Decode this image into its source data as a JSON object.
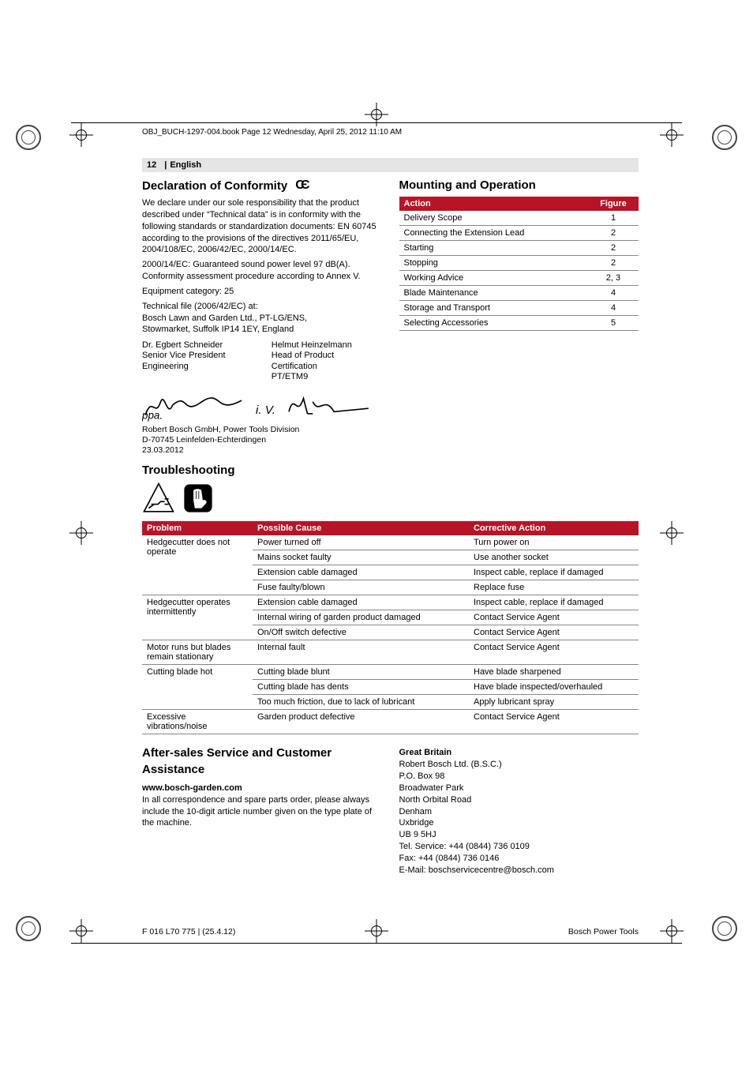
{
  "printer": {
    "header_text": "OBJ_BUCH-1297-004.book  Page 12  Wednesday, April 25, 2012  11:10 AM"
  },
  "page_header": {
    "page_no": "12",
    "lang": "English"
  },
  "conformity": {
    "title": "Declaration of Conformity",
    "body": [
      "We declare under our sole responsibility that the product described under “Technical data” is in conformity with the following standards or standardization documents: EN 60745 according to the provisions of the directives 2011/65/EU, 2004/108/EC, 2006/42/EC, 2000/14/EC.",
      "2000/14/EC: Guaranteed sound power level 97 dB(A). Conformity assessment procedure according to Annex V.",
      "Equipment category: 25",
      "Technical file (2006/42/EC) at:",
      "Bosch Lawn and Garden Ltd., PT-LG/ENS,",
      "Stowmarket, Suffolk IP14 1EY, England"
    ],
    "signers": [
      {
        "name": "Dr. Egbert Schneider",
        "title1": "Senior Vice President",
        "title2": "Engineering"
      },
      {
        "name": "Helmut Heinzelmann",
        "title1": "Head of Product Certification",
        "title2": "PT/ETM9"
      }
    ],
    "address": [
      "Robert Bosch GmbH, Power Tools Division",
      "D-70745 Leinfelden-Echterdingen",
      "23.03.2012"
    ]
  },
  "mounting": {
    "title": "Mounting and Operation",
    "cols": [
      "Action",
      "Figure"
    ],
    "rows": [
      [
        "Delivery Scope",
        "1"
      ],
      [
        "Connecting the Extension Lead",
        "2"
      ],
      [
        "Starting",
        "2"
      ],
      [
        "Stopping",
        "2"
      ],
      [
        "Working Advice",
        "2, 3"
      ],
      [
        "Blade Maintenance",
        "4"
      ],
      [
        "Storage and Transport",
        "4"
      ],
      [
        "Selecting Accessories",
        "5"
      ]
    ]
  },
  "troubleshooting": {
    "title": "Troubleshooting",
    "cols": [
      "Problem",
      "Possible Cause",
      "Corrective Action"
    ],
    "rows": [
      {
        "problem": "Hedgecutter does not operate",
        "items": [
          [
            "Power turned off",
            "Turn power on"
          ],
          [
            "Mains socket faulty",
            "Use another socket"
          ],
          [
            "Extension cable damaged",
            "Inspect cable, replace if damaged"
          ],
          [
            "Fuse faulty/blown",
            "Replace fuse"
          ]
        ]
      },
      {
        "problem": "Hedgecutter operates intermittently",
        "items": [
          [
            "Extension cable damaged",
            "Inspect cable, replace if damaged"
          ],
          [
            "Internal wiring of garden product damaged",
            "Contact Service Agent"
          ],
          [
            "On/Off switch defective",
            "Contact Service Agent"
          ]
        ]
      },
      {
        "problem": "Motor runs but blades remain stationary",
        "items": [
          [
            "Internal fault",
            "Contact Service Agent"
          ]
        ]
      },
      {
        "problem": "Cutting blade hot",
        "items": [
          [
            "Cutting blade blunt",
            "Have blade sharpened"
          ],
          [
            "Cutting blade has dents",
            "Have blade inspected/overhauled"
          ],
          [
            "Too much friction, due to lack of lubricant",
            "Apply lubricant spray"
          ]
        ]
      },
      {
        "problem": "Excessive vibrations/noise",
        "items": [
          [
            "Garden product defective",
            "Contact Service Agent"
          ]
        ]
      }
    ]
  },
  "after_sales": {
    "title": "After-sales Service and Customer Assistance",
    "url": "www.bosch-garden.com",
    "note": "In all correspondence and spare parts order, please always include the 10-digit article number given on the type plate of the machine.",
    "gb_heading": "Great Britain",
    "gb_lines": [
      "Robert Bosch Ltd. (B.S.C.)",
      "P.O. Box 98",
      "Broadwater Park",
      "North Orbital Road",
      "Denham",
      "Uxbridge",
      "UB 9 5HJ",
      "Tel. Service: +44 (0844) 736 0109",
      "Fax: +44 (0844) 736 0146",
      "E-Mail: boschservicecentre@bosch.com"
    ]
  },
  "footer": {
    "left": "F 016 L70 775 | (25.4.12)",
    "right": "Bosch Power Tools"
  },
  "style": {
    "accent": "#b81427",
    "rule": "#888888",
    "band": "#e5e5e5"
  }
}
